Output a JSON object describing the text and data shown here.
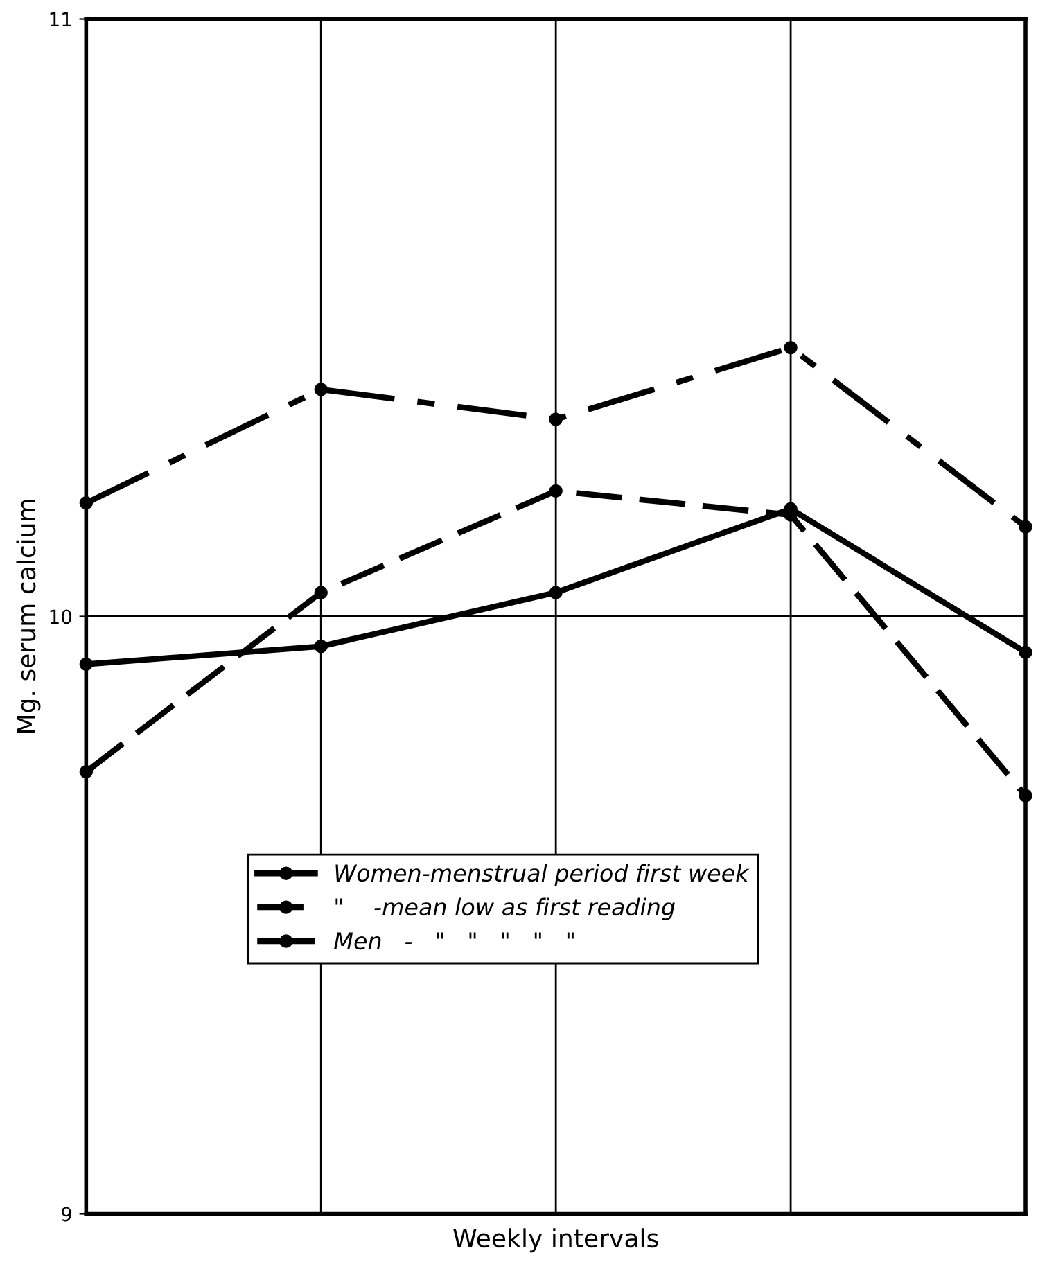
{
  "chart_data": {
    "type": "line",
    "xlabel": "Weekly intervals",
    "ylabel": "Mg. serum calcium",
    "categories": [
      null,
      null,
      null,
      null,
      null
    ],
    "series": [
      {
        "name": "Women-menstrual period first week",
        "color": "#000000",
        "line_style": "solid",
        "values": [
          9.92,
          9.95,
          10.04,
          10.18,
          9.94
        ]
      },
      {
        "name": "\"    -mean low as first reading",
        "color": "#000000",
        "line_style": "dashed",
        "values": [
          9.74,
          10.04,
          10.21,
          10.17,
          9.7
        ]
      },
      {
        "name": "Men   -   \"   \"   \"   \"   \"",
        "color": "#000000",
        "line_style": "dashdot",
        "values": [
          10.19,
          10.38,
          10.33,
          10.45,
          10.15
        ]
      }
    ],
    "ylim": [
      9,
      11
    ],
    "yticks": [
      9,
      10,
      11
    ],
    "grid": true,
    "legend": "bottom left",
    "marker": "circle"
  }
}
